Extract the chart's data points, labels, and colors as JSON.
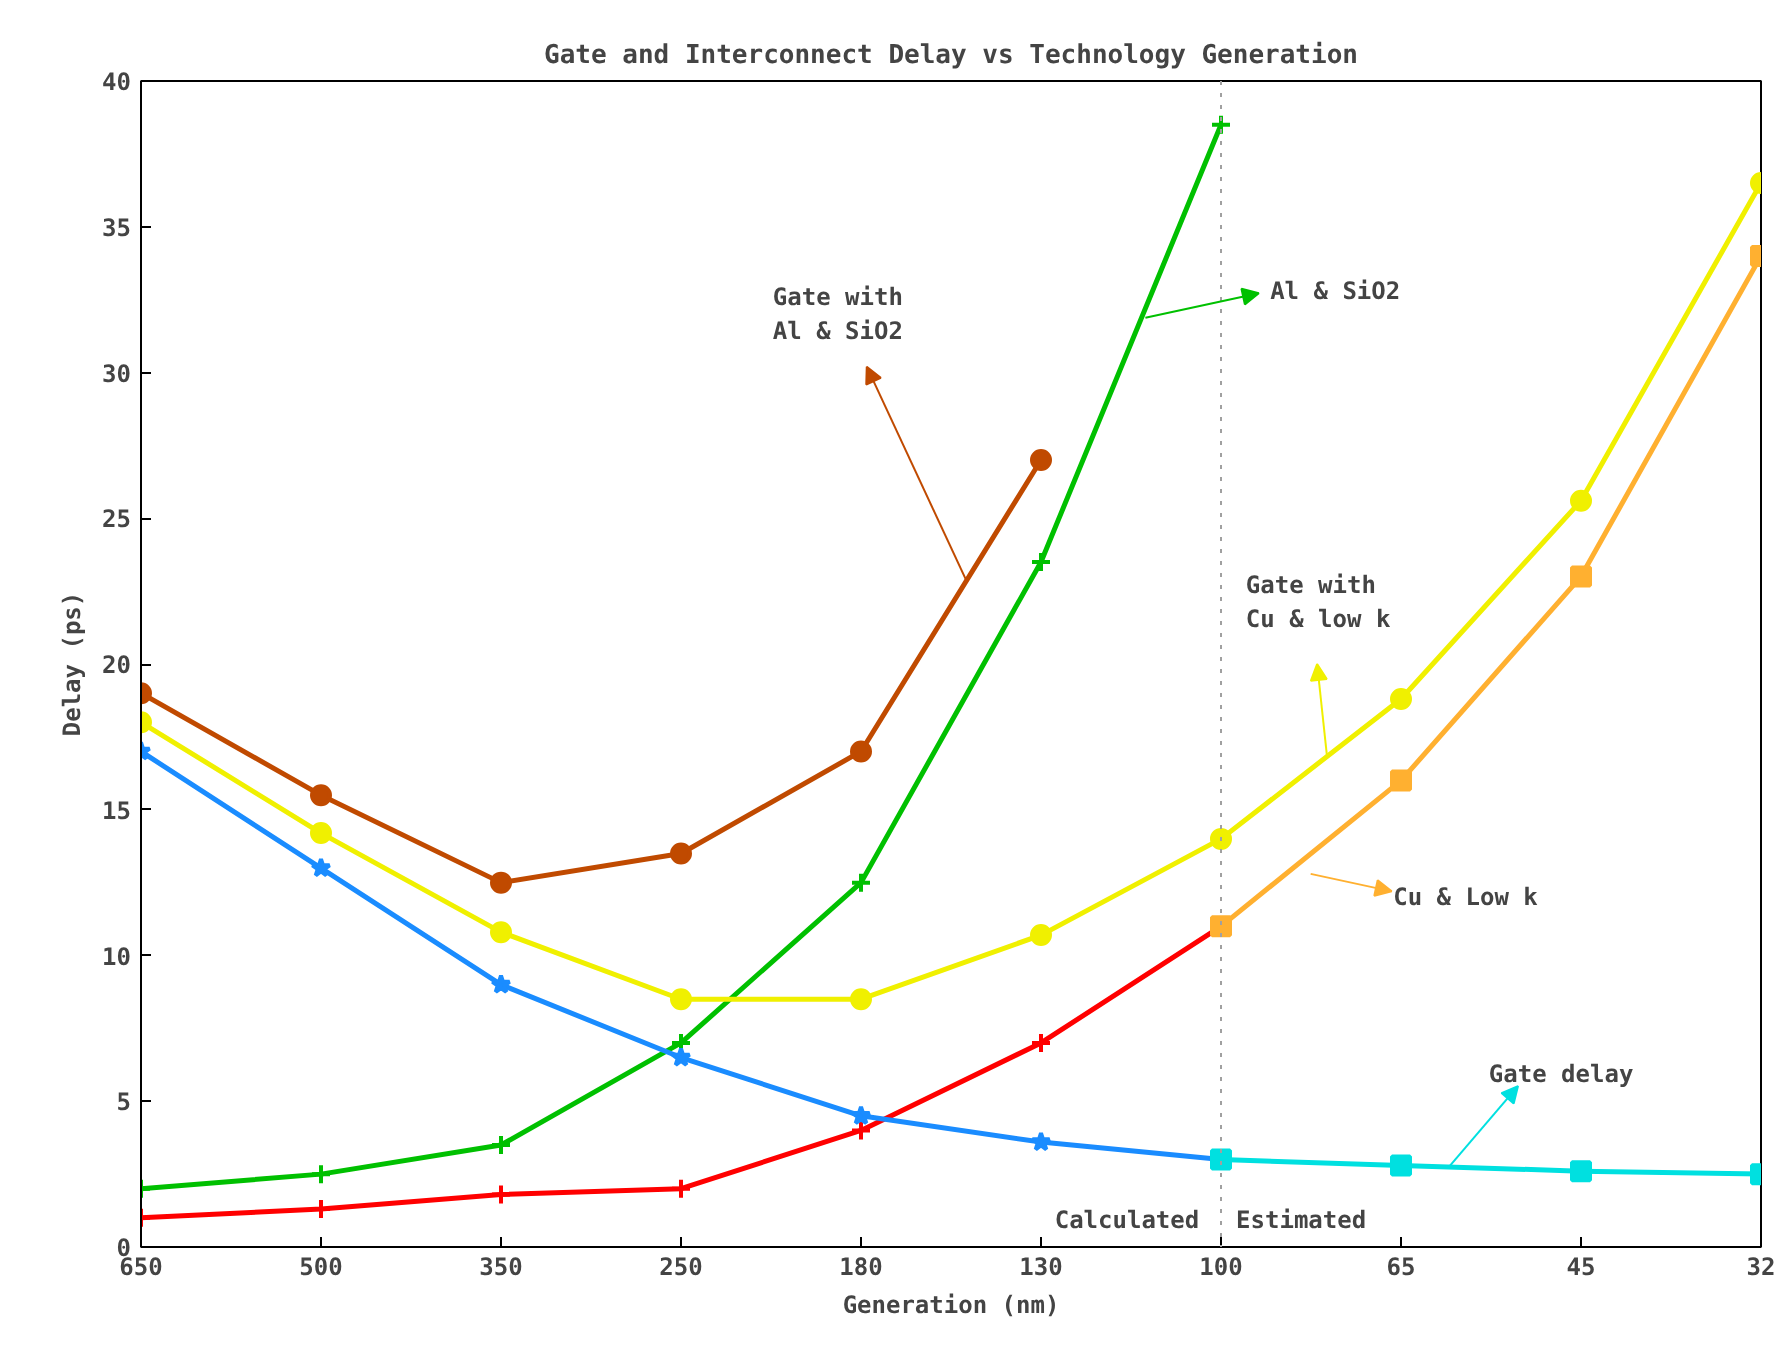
{
  "chart_data": {
    "type": "line",
    "title": "Gate and Interconnect Delay vs Technology Generation",
    "xlabel": "Generation (nm)",
    "ylabel": "Delay (ps)",
    "categories": [
      "650",
      "500",
      "350",
      "250",
      "180",
      "130",
      "100",
      "65",
      "45",
      "32"
    ],
    "ylim": [
      0,
      40
    ],
    "yticks": [
      0,
      5,
      10,
      15,
      20,
      25,
      30,
      35,
      40
    ],
    "grid": false,
    "series": [
      {
        "color": "#c04a00",
        "marker": "circle",
        "values": [
          19,
          15.5,
          12.5,
          13.5,
          17,
          27,
          null,
          null,
          null,
          null
        ]
      },
      {
        "color": "#00c000",
        "marker": "cross",
        "values": [
          2,
          2.5,
          3.5,
          7,
          12.5,
          23.5,
          38.5,
          null,
          null,
          null
        ]
      },
      {
        "color": "#f0f000",
        "marker": "circle",
        "values": [
          18,
          14.2,
          10.8,
          8.5,
          8.5,
          10.7,
          14,
          18.8,
          25.6,
          36.5
        ]
      },
      {
        "color": "#ff0000",
        "marker": "cross",
        "values": [
          1,
          1.3,
          1.8,
          2,
          4,
          7,
          11,
          null,
          null,
          null
        ]
      },
      {
        "color": "#ffb030",
        "marker": "square",
        "values": [
          null,
          null,
          null,
          null,
          null,
          null,
          11,
          16,
          23,
          34
        ]
      },
      {
        "color": "#1a8cff",
        "marker": "star",
        "values": [
          17,
          13,
          9,
          6.5,
          4.5,
          3.6,
          3,
          null,
          null,
          null
        ]
      },
      {
        "color": "#00e0e0",
        "marker": "square",
        "values": [
          null,
          null,
          null,
          null,
          null,
          null,
          3,
          2.8,
          2.6,
          2.5
        ]
      }
    ],
    "ref_lines": [
      {
        "axis": "x",
        "value": "100",
        "color": "#a0a0a0",
        "line_style": "dotted"
      }
    ],
    "annotations": [
      "Gate with\nAl & SiO2",
      "Al & SiO2",
      "Gate with\nCu & low k",
      "Cu & Low k",
      "Gate delay",
      "Calculated",
      "Estimated"
    ]
  }
}
